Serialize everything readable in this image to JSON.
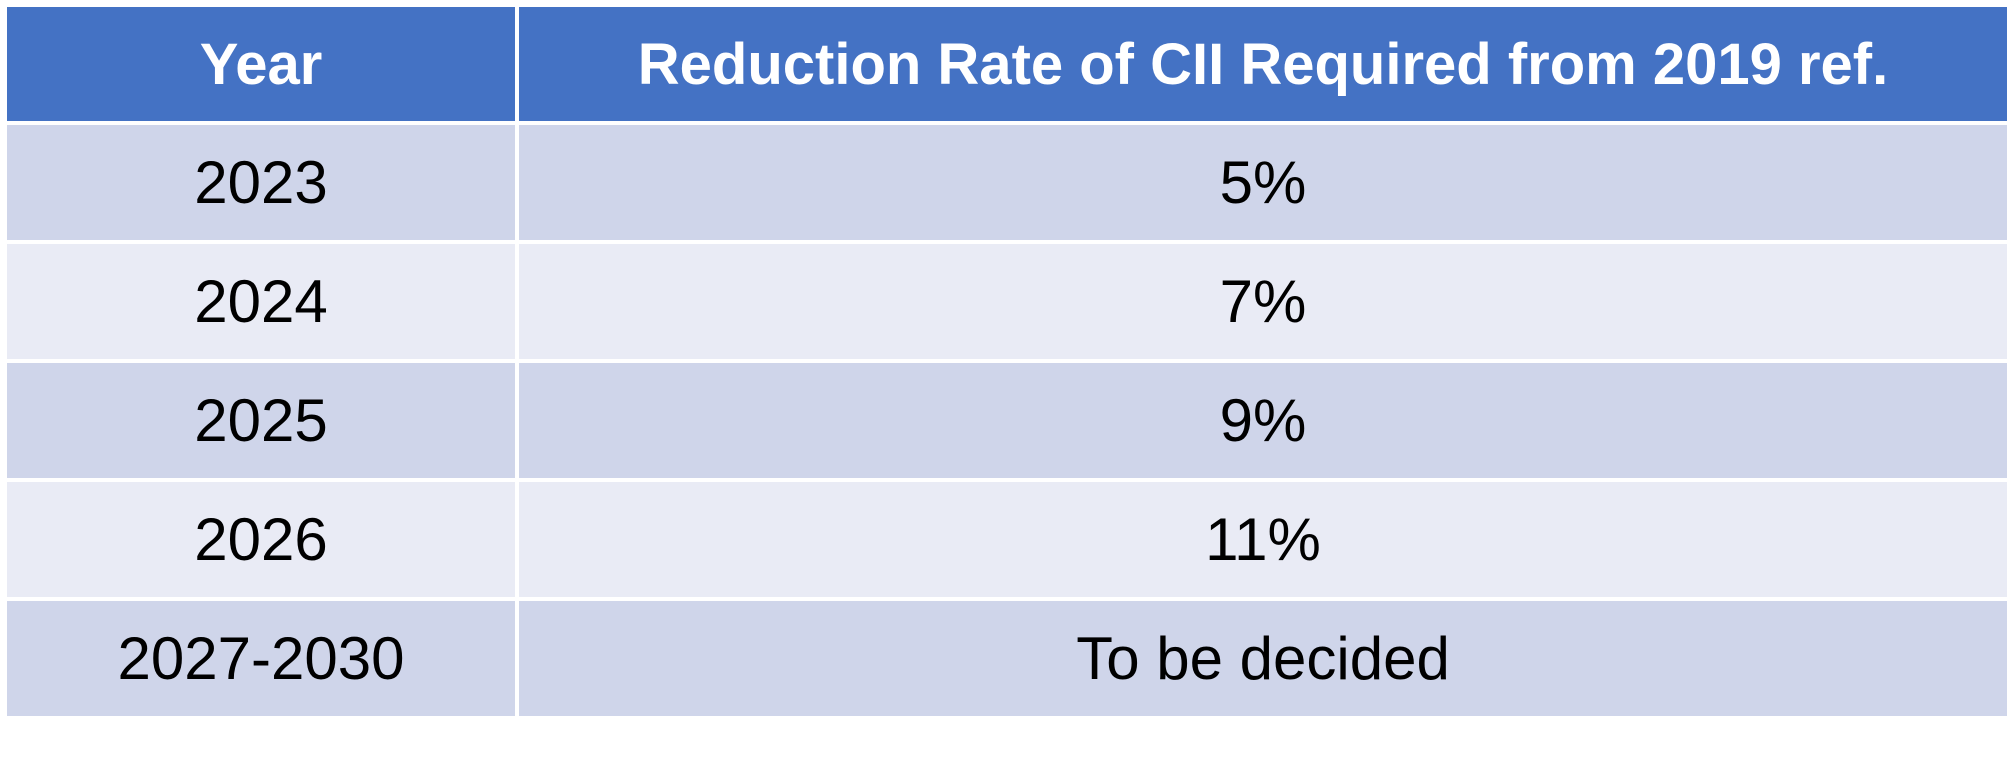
{
  "table": {
    "headers": [
      "Year",
      "Reduction Rate of CII Required from 2019 ref."
    ],
    "rows": [
      [
        "2023",
        "5%"
      ],
      [
        "2024",
        "7%"
      ],
      [
        "2025",
        "9%"
      ],
      [
        "2026",
        "11%"
      ],
      [
        "2027-2030",
        "To be decided"
      ]
    ]
  },
  "colors": {
    "header_bg": "#4472c4",
    "header_text": "#ffffff",
    "row_band_dark": "#cfd5ea",
    "row_band_light": "#e9ebf5",
    "cell_border": "#ffffff"
  }
}
